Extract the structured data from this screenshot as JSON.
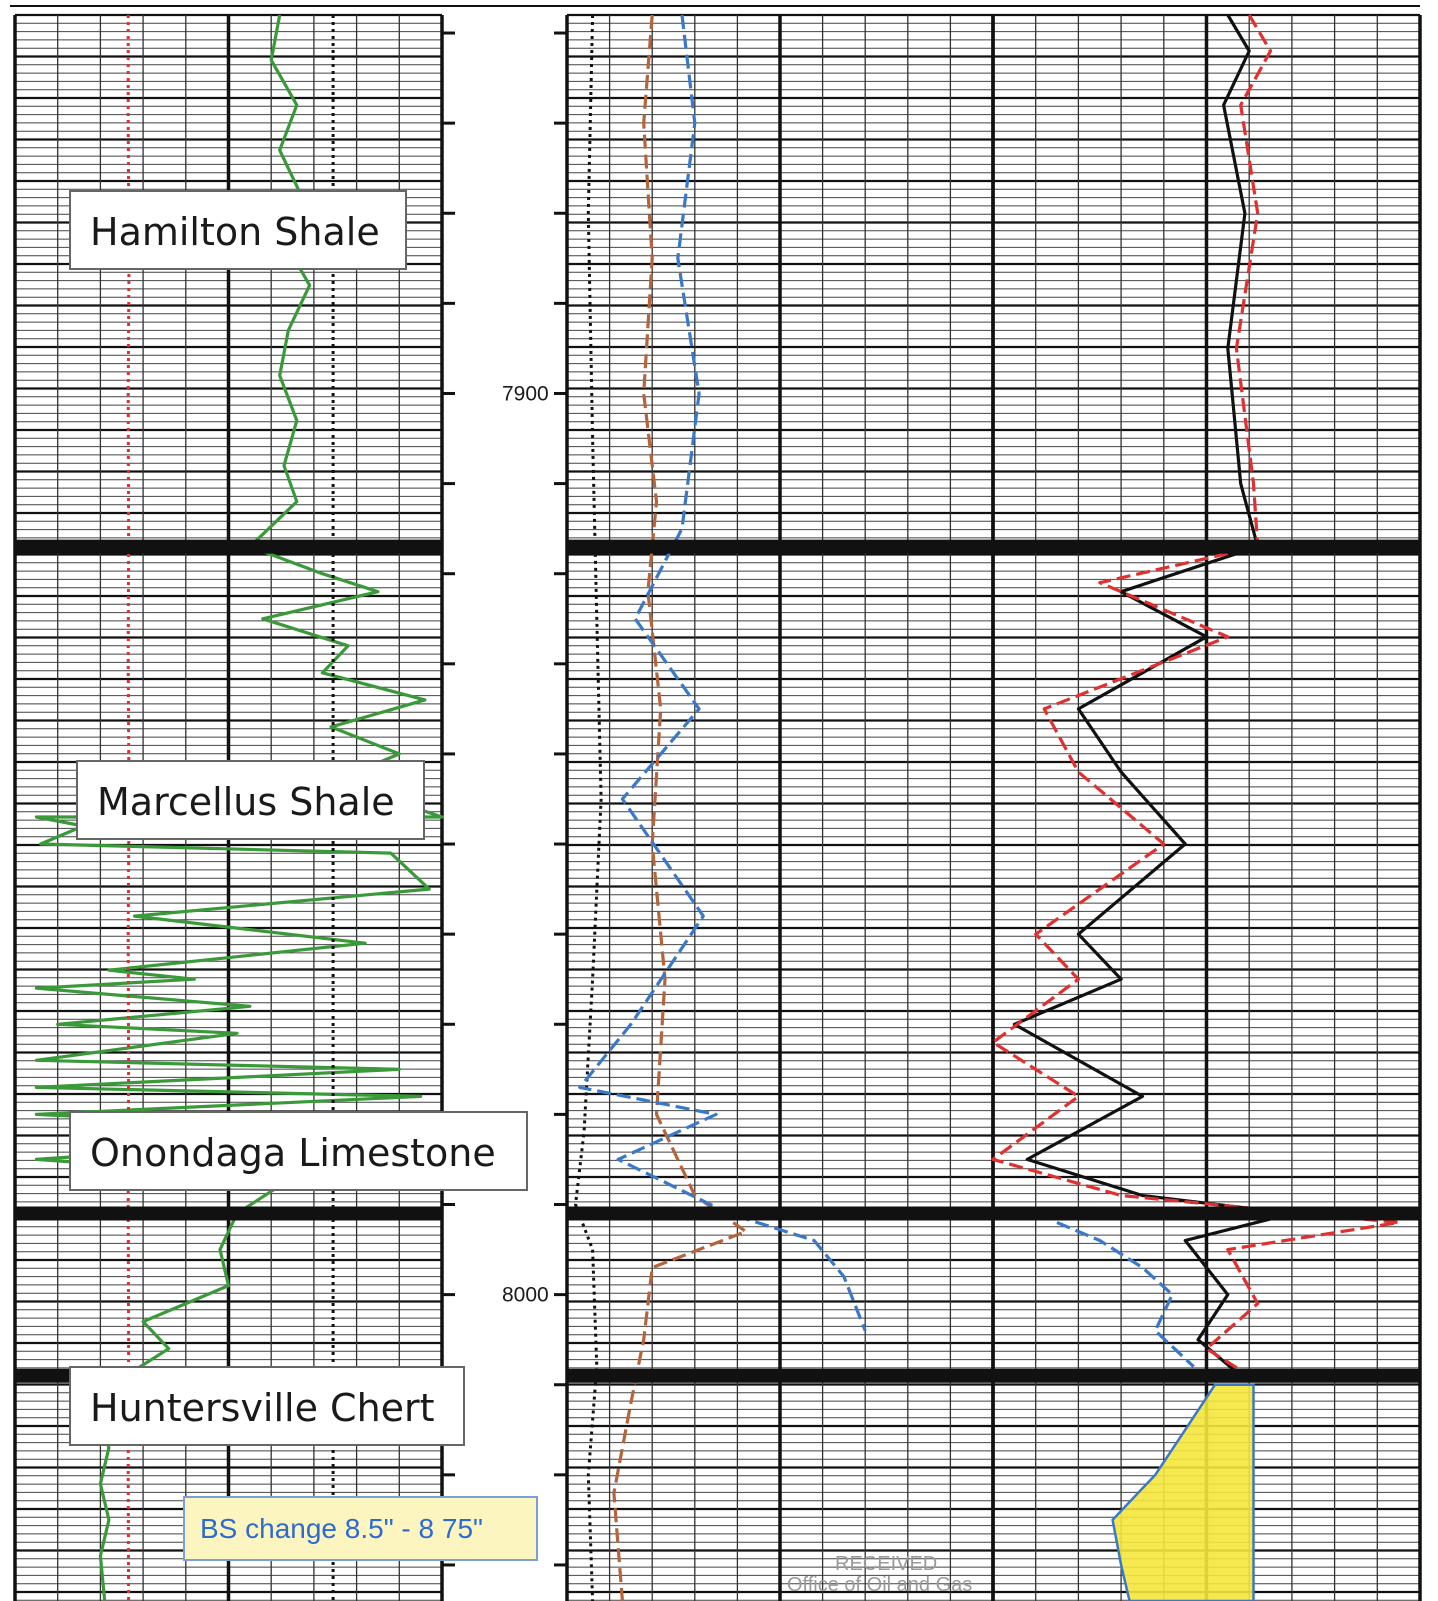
{
  "chart_data": {
    "type": "line",
    "title": "",
    "xlabel": "",
    "ylabel": "",
    "depth_unit": "ft",
    "ylim": [
      7858,
      8034
    ],
    "y_inverted": true,
    "grid": true,
    "depth_labels": [
      {
        "depth": 7900,
        "text": "7900"
      },
      {
        "depth": 8000,
        "text": "8000"
      }
    ],
    "formations": [
      {
        "name": "Hamilton Shale",
        "top": 7858,
        "base": 7917
      },
      {
        "name": "Marcellus Shale",
        "top": 7917,
        "base": 7991
      },
      {
        "name": "Onondaga Limestone",
        "top": 7991,
        "base": 8009
      },
      {
        "name": "Huntersville Chert",
        "top": 8009,
        "base": 8034
      }
    ],
    "tracks": [
      {
        "name": "track-1",
        "series": [
          {
            "key": "gamma-ray",
            "color": "#3a9a3a",
            "style": "solid",
            "shading": "#8ccf8c",
            "points": [
              [
                0.62,
                7858
              ],
              [
                0.6,
                7863
              ],
              [
                0.66,
                7868
              ],
              [
                0.62,
                7873
              ],
              [
                0.67,
                7878
              ],
              [
                0.63,
                7883
              ],
              [
                0.69,
                7888
              ],
              [
                0.64,
                7893
              ],
              [
                0.62,
                7898
              ],
              [
                0.66,
                7903
              ],
              [
                0.63,
                7908
              ],
              [
                0.66,
                7912
              ],
              [
                0.55,
                7917
              ],
              [
                0.72,
                7920
              ],
              [
                0.85,
                7922
              ],
              [
                0.58,
                7925
              ],
              [
                0.78,
                7928
              ],
              [
                0.72,
                7931
              ],
              [
                0.96,
                7934
              ],
              [
                0.74,
                7937
              ],
              [
                0.9,
                7940
              ],
              [
                0.75,
                7943
              ],
              [
                1.0,
                7947
              ],
              [
                0.05,
                7947
              ],
              [
                0.16,
                7948
              ],
              [
                0.06,
                7950
              ],
              [
                0.88,
                7951
              ],
              [
                0.97,
                7955
              ],
              [
                0.28,
                7958
              ],
              [
                0.82,
                7961
              ],
              [
                0.22,
                7964
              ],
              [
                0.42,
                7965
              ],
              [
                0.05,
                7966
              ],
              [
                0.55,
                7968
              ],
              [
                0.1,
                7970
              ],
              [
                0.52,
                7971
              ],
              [
                0.05,
                7974
              ],
              [
                0.9,
                7975
              ],
              [
                0.05,
                7977
              ],
              [
                0.95,
                7978
              ],
              [
                0.05,
                7980
              ],
              [
                0.95,
                7982
              ],
              [
                0.05,
                7985
              ],
              [
                0.65,
                7987
              ],
              [
                0.52,
                7991
              ],
              [
                0.48,
                7995
              ],
              [
                0.5,
                7999
              ],
              [
                0.3,
                8003
              ],
              [
                0.36,
                8006
              ],
              [
                0.26,
                8009
              ],
              [
                0.19,
                8013
              ],
              [
                0.22,
                8017
              ],
              [
                0.2,
                8021
              ],
              [
                0.22,
                8025
              ],
              [
                0.2,
                8029
              ],
              [
                0.21,
                8034
              ]
            ]
          },
          {
            "key": "caliper",
            "color": "#e03030",
            "style": "dotted",
            "points": [
              [
                0.265,
                7858
              ],
              [
                0.265,
                7870
              ],
              [
                0.267,
                7885
              ],
              [
                0.265,
                7900
              ],
              [
                0.266,
                7915
              ],
              [
                0.265,
                7930
              ],
              [
                0.267,
                7945
              ],
              [
                0.265,
                7960
              ],
              [
                0.266,
                7975
              ],
              [
                0.265,
                7990
              ],
              [
                0.266,
                8005
              ],
              [
                0.265,
                8020
              ],
              [
                0.266,
                8034
              ]
            ]
          },
          {
            "key": "bit-size",
            "color": "#111111",
            "style": "dotted",
            "points": [
              [
                0.745,
                7858
              ],
              [
                0.745,
                7900
              ],
              [
                0.745,
                7950
              ],
              [
                0.745,
                8000
              ],
              [
                0.745,
                8034
              ]
            ]
          }
        ]
      },
      {
        "name": "track-2",
        "series": [
          {
            "key": "black-dotted",
            "color": "#111111",
            "style": "dotted",
            "points": [
              [
                0.06,
                7858
              ],
              [
                0.05,
                7880
              ],
              [
                0.06,
                7905
              ],
              [
                0.07,
                7925
              ],
              [
                0.08,
                7945
              ],
              [
                0.06,
                7965
              ],
              [
                0.04,
                7982
              ],
              [
                0.02,
                7990
              ],
              [
                0.06,
                7995
              ],
              [
                0.07,
                8008
              ],
              [
                0.05,
                8020
              ],
              [
                0.06,
                8034
              ]
            ]
          },
          {
            "key": "brown-dashed",
            "color": "#b5643c",
            "style": "dashed",
            "points": [
              [
                0.2,
                7858
              ],
              [
                0.18,
                7870
              ],
              [
                0.2,
                7885
              ],
              [
                0.18,
                7900
              ],
              [
                0.21,
                7912
              ],
              [
                0.19,
                7922
              ],
              [
                0.22,
                7935
              ],
              [
                0.2,
                7950
              ],
              [
                0.23,
                7965
              ],
              [
                0.21,
                7980
              ],
              [
                0.3,
                7989
              ],
              [
                0.42,
                7993
              ],
              [
                0.2,
                7997
              ],
              [
                0.18,
                8005
              ],
              [
                0.15,
                8012
              ],
              [
                0.11,
                8022
              ],
              [
                0.13,
                8034
              ]
            ]
          },
          {
            "key": "blue-dashed",
            "color": "#3a78c8",
            "style": "dashed",
            "points": [
              [
                0.27,
                7858
              ],
              [
                0.3,
                7870
              ],
              [
                0.26,
                7885
              ],
              [
                0.31,
                7900
              ],
              [
                0.27,
                7915
              ],
              [
                0.16,
                7925
              ],
              [
                0.31,
                7935
              ],
              [
                0.13,
                7945
              ],
              [
                0.32,
                7958
              ],
              [
                0.15,
                7970
              ],
              [
                0.03,
                7977
              ],
              [
                0.35,
                7980
              ],
              [
                0.12,
                7985
              ],
              [
                0.38,
                7991
              ],
              [
                0.58,
                7994
              ],
              [
                0.65,
                7998
              ],
              [
                0.7,
                8004
              ]
            ]
          }
        ]
      },
      {
        "name": "track-3",
        "series": [
          {
            "key": "black-solid",
            "color": "#111111",
            "style": "solid",
            "points": [
              [
                0.55,
                7858
              ],
              [
                0.6,
                7862
              ],
              [
                0.54,
                7868
              ],
              [
                0.59,
                7880
              ],
              [
                0.55,
                7895
              ],
              [
                0.58,
                7910
              ],
              [
                0.62,
                7917
              ],
              [
                0.3,
                7922
              ],
              [
                0.5,
                7927
              ],
              [
                0.2,
                7935
              ],
              [
                0.3,
                7942
              ],
              [
                0.45,
                7950
              ],
              [
                0.2,
                7960
              ],
              [
                0.3,
                7965
              ],
              [
                0.05,
                7970
              ],
              [
                0.35,
                7978
              ],
              [
                0.08,
                7985
              ],
              [
                0.35,
                7989
              ],
              [
                0.7,
                7991
              ],
              [
                0.45,
                7994
              ],
              [
                0.55,
                8000
              ],
              [
                0.48,
                8005
              ],
              [
                0.58,
                8009
              ]
            ]
          },
          {
            "key": "red-dashed",
            "color": "#e03030",
            "style": "dashed",
            "points": [
              [
                0.6,
                7858
              ],
              [
                0.65,
                7862
              ],
              [
                0.58,
                7868
              ],
              [
                0.62,
                7880
              ],
              [
                0.57,
                7895
              ],
              [
                0.61,
                7910
              ],
              [
                0.62,
                7917
              ],
              [
                0.25,
                7921
              ],
              [
                0.55,
                7927
              ],
              [
                0.12,
                7935
              ],
              [
                0.2,
                7942
              ],
              [
                0.4,
                7950
              ],
              [
                0.1,
                7960
              ],
              [
                0.2,
                7965
              ],
              [
                0.0,
                7972
              ],
              [
                0.2,
                7978
              ],
              [
                0.0,
                7985
              ],
              [
                0.3,
                7989
              ],
              [
                0.95,
                7992
              ],
              [
                0.55,
                7995
              ],
              [
                0.62,
                8001
              ],
              [
                0.5,
                8006
              ],
              [
                0.6,
                8009
              ]
            ]
          },
          {
            "key": "blue-dashed",
            "color": "#3a78c8",
            "style": "dashed",
            "points": [
              [
                0.15,
                7992
              ],
              [
                0.25,
                7994
              ],
              [
                0.35,
                7997
              ],
              [
                0.42,
                8000
              ],
              [
                0.38,
                8004
              ],
              [
                0.47,
                8008
              ]
            ]
          },
          {
            "key": "porosity-crossover",
            "color": "#f5e63c",
            "style": "fill",
            "points": [
              [
                0.52,
                8010
              ],
              [
                0.45,
                8015
              ],
              [
                0.38,
                8020
              ],
              [
                0.28,
                8025
              ],
              [
                0.3,
                8030
              ],
              [
                0.32,
                8034
              ]
            ]
          }
        ]
      }
    ],
    "annotations": {
      "note": "BS change 8.5\" - 8 75\"",
      "stamp_line1": "RECEIVED",
      "stamp_line2": "Office of Oil and Gas"
    }
  }
}
